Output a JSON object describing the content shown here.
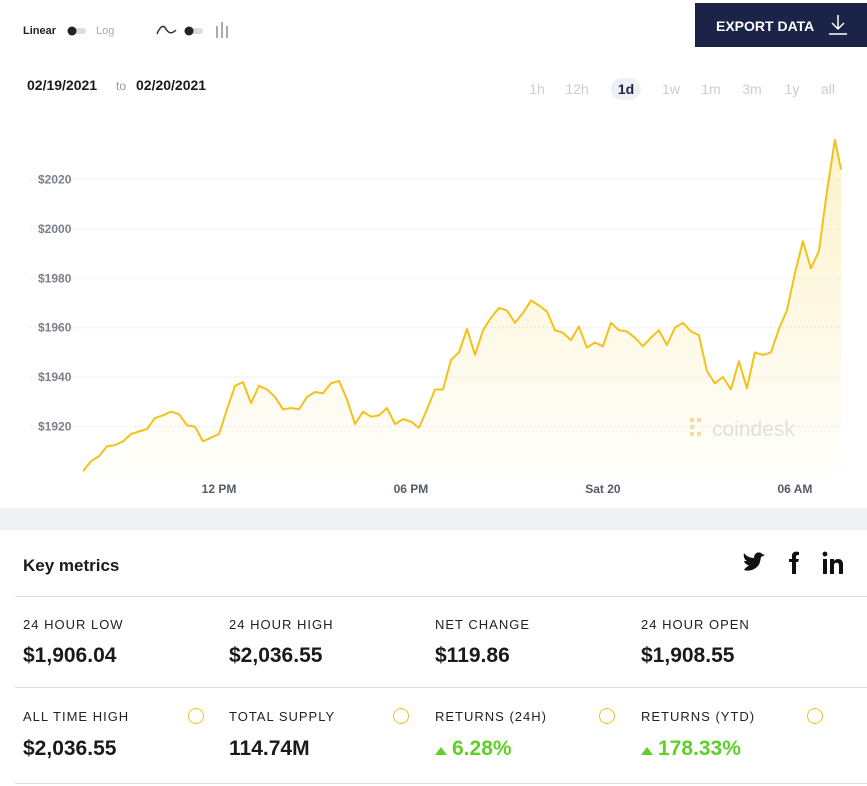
{
  "toolbar": {
    "scale_options": [
      "Linear",
      "Log"
    ],
    "export": "EXPORT DATA"
  },
  "date_range": {
    "from": "02/19/2021",
    "joiner": "to",
    "to": "02/20/2021"
  },
  "ranges": [
    {
      "label": "1h"
    },
    {
      "label": "12h"
    },
    {
      "label": "1d",
      "active": true
    },
    {
      "label": "1w"
    },
    {
      "label": "1m"
    },
    {
      "label": "3m"
    },
    {
      "label": "1y"
    },
    {
      "label": "all"
    }
  ],
  "chart_data": {
    "type": "line",
    "watermark": "coindesk",
    "color": "#f2c21b",
    "grid": true,
    "x": [
      7.75,
      8,
      8.25,
      8.5,
      8.75,
      9,
      9.25,
      9.5,
      9.75,
      10,
      10.25,
      10.5,
      10.75,
      11,
      11.25,
      11.5,
      11.75,
      12,
      12.25,
      12.5,
      12.75,
      13,
      13.25,
      13.5,
      13.75,
      14,
      14.25,
      14.5,
      14.75,
      15,
      15.25,
      15.5,
      15.75,
      16,
      16.25,
      16.5,
      16.75,
      17,
      17.25,
      17.5,
      17.75,
      18,
      18.25,
      18.5,
      18.75,
      19,
      19.25,
      19.5,
      19.75,
      20,
      20.25,
      20.5,
      20.75,
      21,
      21.25,
      21.5,
      21.75,
      22,
      22.25,
      22.5,
      22.75,
      23,
      23.25,
      23.5,
      23.75,
      24,
      24.25,
      24.5,
      24.75,
      25,
      25.25,
      25.5,
      25.75,
      26,
      26.25,
      26.5,
      26.75,
      27,
      27.25,
      27.5,
      27.75,
      28,
      28.25,
      28.5,
      28.75,
      29,
      29.25,
      29.5,
      29.75,
      30,
      30.25,
      30.5,
      30.75,
      31,
      31.25,
      31.44
    ],
    "values": [
      1902,
      1906,
      1908,
      1912,
      1912.5,
      1914,
      1917,
      1918,
      1919,
      1923.5,
      1924.5,
      1926,
      1925,
      1920.5,
      1920,
      1914,
      1915.5,
      1917,
      1927,
      1936.5,
      1938,
      1929.5,
      1936.5,
      1935,
      1932,
      1927,
      1927.5,
      1927,
      1932,
      1934,
      1933.5,
      1937.5,
      1938.5,
      1931,
      1921,
      1926,
      1924,
      1924.5,
      1927.5,
      1921,
      1923,
      1922,
      1919.5,
      1927,
      1935,
      1935,
      1947,
      1950,
      1959.5,
      1949,
      1959,
      1964,
      1968,
      1967,
      1962,
      1966,
      1971,
      1969,
      1966.5,
      1959,
      1958,
      1955,
      1960.5,
      1952,
      1954,
      1952.5,
      1962,
      1959,
      1958.5,
      1956,
      1952.5,
      1956,
      1959,
      1953,
      1960,
      1962,
      1958.5,
      1957,
      1942.5,
      1937.5,
      1940,
      1935,
      1946.5,
      1935.5,
      1950,
      1949,
      1950,
      1959.5,
      1967,
      1982,
      1995,
      1984,
      1991,
      2015,
      2036,
      2024
    ],
    "xlim": [
      7.75,
      31.44
    ],
    "xticks": [
      {
        "value": 12,
        "label": "12 PM"
      },
      {
        "value": 18,
        "label": "06 PM"
      },
      {
        "value": 24,
        "label": "Sat 20"
      },
      {
        "value": 30,
        "label": "06 AM"
      }
    ],
    "ylim": [
      1900,
      2040
    ],
    "yticks": [
      {
        "value": 1920,
        "label": "$1920"
      },
      {
        "value": 1940,
        "label": "$1940"
      },
      {
        "value": 1960,
        "label": "$1960"
      },
      {
        "value": 1980,
        "label": "$1980"
      },
      {
        "value": 2000,
        "label": "$2000"
      },
      {
        "value": 2020,
        "label": "$2020"
      }
    ]
  },
  "metrics": {
    "title": "Key metrics",
    "rows": [
      [
        {
          "label": "24 HOUR LOW",
          "value": "$1,906.04"
        },
        {
          "label": "24 HOUR HIGH",
          "value": "$2,036.55"
        },
        {
          "label": "NET CHANGE",
          "value": "$119.86"
        },
        {
          "label": "24 HOUR OPEN",
          "value": "$1,908.55"
        }
      ],
      [
        {
          "label": "ALL TIME HIGH",
          "value": "$2,036.55",
          "info": true
        },
        {
          "label": "TOTAL SUPPLY",
          "value": "114.74M",
          "info": true
        },
        {
          "label": "RETURNS (24H)",
          "value": "6.28%",
          "info": true,
          "trend": "up"
        },
        {
          "label": "RETURNS (YTD)",
          "value": "178.33%",
          "info": true,
          "trend": "up"
        }
      ]
    ]
  }
}
